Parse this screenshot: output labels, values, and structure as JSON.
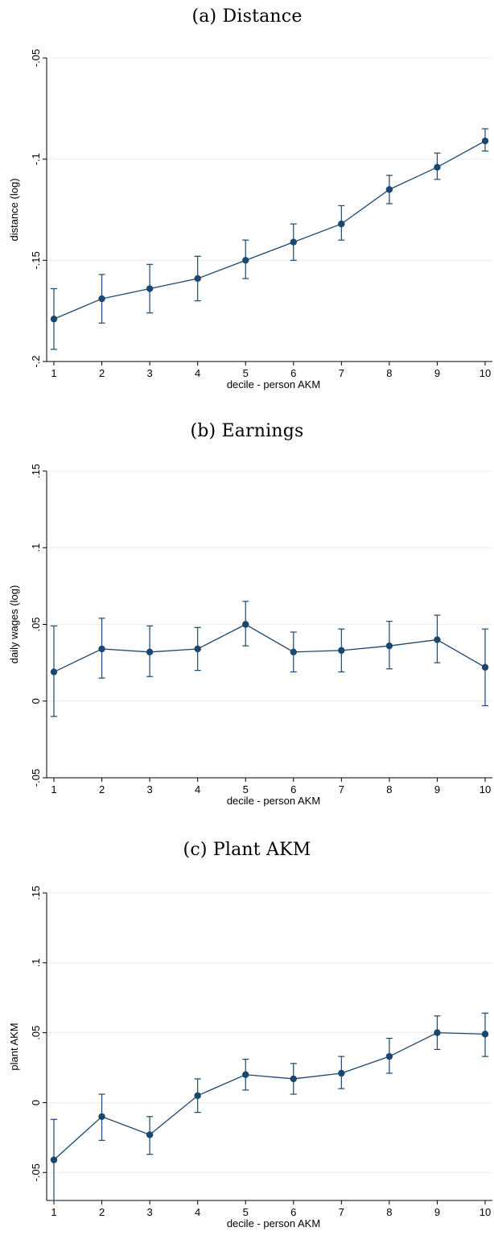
{
  "chart_data": [
    {
      "type": "line",
      "title": "(a) Distance",
      "xlabel": "decile - person AKM",
      "ylabel": "distance (log)",
      "x": [
        1,
        2,
        3,
        4,
        5,
        6,
        7,
        8,
        9,
        10
      ],
      "xticks": [
        "1",
        "2",
        "3",
        "4",
        "5",
        "6",
        "7",
        "8",
        "9",
        "10"
      ],
      "yticks": [
        -0.05,
        -0.1,
        -0.15,
        -0.2
      ],
      "ytick_labels": [
        "-.05",
        "-.1",
        "-.15",
        "-.2"
      ],
      "ylim": [
        -0.2,
        -0.05
      ],
      "grid": true,
      "series": [
        {
          "values": [
            -0.179,
            -0.169,
            -0.164,
            -0.159,
            -0.15,
            -0.141,
            -0.132,
            -0.115,
            -0.104,
            -0.091
          ],
          "ci_low": [
            -0.194,
            -0.181,
            -0.176,
            -0.17,
            -0.159,
            -0.15,
            -0.14,
            -0.122,
            -0.11,
            -0.096
          ],
          "ci_high": [
            -0.164,
            -0.157,
            -0.152,
            -0.148,
            -0.14,
            -0.132,
            -0.123,
            -0.108,
            -0.097,
            -0.085
          ]
        }
      ]
    },
    {
      "type": "line",
      "title": "(b) Earnings",
      "xlabel": "decile - person AKM",
      "ylabel": "daily wages (log)",
      "x": [
        1,
        2,
        3,
        4,
        5,
        6,
        7,
        8,
        9,
        10
      ],
      "xticks": [
        "1",
        "2",
        "3",
        "4",
        "5",
        "6",
        "7",
        "8",
        "9",
        "10"
      ],
      "yticks": [
        0.15,
        0.1,
        0.05,
        0,
        -0.05
      ],
      "ytick_labels": [
        ".15",
        ".1",
        ".05",
        "0",
        "-.05"
      ],
      "ylim": [
        -0.05,
        0.15
      ],
      "grid": true,
      "series": [
        {
          "values": [
            0.019,
            0.034,
            0.032,
            0.034,
            0.05,
            0.032,
            0.033,
            0.036,
            0.04,
            0.022
          ],
          "ci_low": [
            -0.01,
            0.015,
            0.016,
            0.02,
            0.036,
            0.019,
            0.019,
            0.021,
            0.025,
            -0.003
          ],
          "ci_high": [
            0.049,
            0.054,
            0.049,
            0.048,
            0.065,
            0.045,
            0.047,
            0.052,
            0.056,
            0.047
          ]
        }
      ]
    },
    {
      "type": "line",
      "title": "(c) Plant AKM",
      "xlabel": "decile - person AKM",
      "ylabel": "plant AKM",
      "x": [
        1,
        2,
        3,
        4,
        5,
        6,
        7,
        8,
        9,
        10
      ],
      "xticks": [
        "1",
        "2",
        "3",
        "4",
        "5",
        "6",
        "7",
        "8",
        "9",
        "10"
      ],
      "yticks": [
        0.15,
        0.1,
        0.05,
        0,
        -0.05
      ],
      "ytick_labels": [
        ".15",
        ".1",
        ".05",
        "0",
        "-.05"
      ],
      "ylim": [
        -0.07,
        0.15
      ],
      "grid": true,
      "series": [
        {
          "values": [
            -0.041,
            -0.01,
            -0.023,
            0.005,
            0.02,
            0.017,
            0.021,
            0.033,
            0.05,
            0.049
          ],
          "ci_low": [
            -0.07,
            -0.027,
            -0.037,
            -0.007,
            0.009,
            0.006,
            0.01,
            0.021,
            0.038,
            0.033
          ],
          "ci_high": [
            -0.012,
            0.006,
            -0.01,
            0.017,
            0.031,
            0.028,
            0.033,
            0.046,
            0.062,
            0.064
          ]
        }
      ]
    }
  ],
  "colors": {
    "series": "#1a476f",
    "grid": "#e8eef2",
    "axis": "#000000"
  }
}
